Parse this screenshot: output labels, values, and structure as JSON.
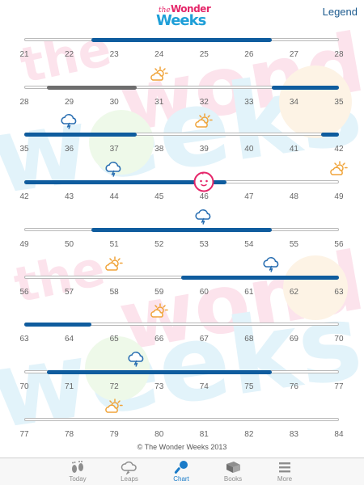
{
  "header": {
    "logo": {
      "the": "the",
      "wonder": "Wonder",
      "weeks": "Weeks"
    },
    "legend_label": "Legend"
  },
  "colors": {
    "leap_blue": "#0f5c9e",
    "fussy_gray": "#6d6d6d",
    "storm_blue": "#2a6fb2",
    "sun_orange": "#f0a43a",
    "face_pink": "#e5276a",
    "tab_active": "#1a7bc8",
    "tab_inactive": "#8e8e8e"
  },
  "chart": {
    "rows": [
      {
        "start_week": 21,
        "labels": [
          "21",
          "22",
          "23",
          "24",
          "25",
          "26",
          "27",
          "28"
        ],
        "segments": [
          {
            "from": 22.5,
            "to": 26.5,
            "kind": "leap"
          }
        ],
        "icons": []
      },
      {
        "start_week": 28,
        "labels": [
          "28",
          "29",
          "30",
          "31",
          "32",
          "33",
          "34",
          "35"
        ],
        "segments": [
          {
            "from": 28.5,
            "to": 30.5,
            "kind": "fussy"
          },
          {
            "from": 33.5,
            "to": 35,
            "kind": "leap"
          }
        ],
        "icons": [
          {
            "name": "sun-icon",
            "week": 31
          }
        ]
      },
      {
        "start_week": 35,
        "labels": [
          "35",
          "36",
          "37",
          "38",
          "39",
          "40",
          "41",
          "42"
        ],
        "segments": [
          {
            "from": 35,
            "to": 37.5,
            "kind": "leap"
          },
          {
            "from": 41.6,
            "to": 42,
            "kind": "leap"
          }
        ],
        "icons": [
          {
            "name": "storm-icon",
            "week": 36
          },
          {
            "name": "sun-icon",
            "week": 39
          }
        ]
      },
      {
        "start_week": 42,
        "labels": [
          "42",
          "43",
          "44",
          "45",
          "46",
          "47",
          "48",
          "49"
        ],
        "segments": [
          {
            "from": 42,
            "to": 46.5,
            "kind": "leap"
          }
        ],
        "icons": [
          {
            "name": "storm-icon",
            "week": 44
          },
          {
            "name": "sun-icon",
            "week": 49
          }
        ],
        "marker": {
          "name": "current-week-face-icon",
          "week": 46
        }
      },
      {
        "start_week": 49,
        "labels": [
          "49",
          "50",
          "51",
          "52",
          "53",
          "54",
          "55",
          "56"
        ],
        "segments": [
          {
            "from": 50.5,
            "to": 54.5,
            "kind": "leap"
          }
        ],
        "icons": [
          {
            "name": "storm-icon",
            "week": 53
          }
        ]
      },
      {
        "start_week": 56,
        "labels": [
          "56",
          "57",
          "58",
          "59",
          "60",
          "61",
          "62",
          "63"
        ],
        "segments": [
          {
            "from": 59.5,
            "to": 63,
            "kind": "leap"
          }
        ],
        "icons": [
          {
            "name": "sun-icon",
            "week": 58
          },
          {
            "name": "storm-icon",
            "week": 61.5
          }
        ]
      },
      {
        "start_week": 63,
        "labels": [
          "63",
          "64",
          "65",
          "66",
          "67",
          "68",
          "69",
          "70"
        ],
        "segments": [
          {
            "from": 63,
            "to": 64.5,
            "kind": "leap"
          }
        ],
        "icons": [
          {
            "name": "sun-icon",
            "week": 66
          }
        ]
      },
      {
        "start_week": 70,
        "labels": [
          "70",
          "71",
          "72",
          "73",
          "74",
          "75",
          "76",
          "77"
        ],
        "segments": [
          {
            "from": 70.5,
            "to": 75.5,
            "kind": "leap"
          }
        ],
        "icons": [
          {
            "name": "storm-icon",
            "week": 72.5
          }
        ]
      },
      {
        "start_week": 77,
        "labels": [
          "77",
          "78",
          "79",
          "80",
          "81",
          "82",
          "83",
          "84"
        ],
        "segments": [],
        "icons": [
          {
            "name": "sun-icon",
            "week": 79
          }
        ]
      }
    ]
  },
  "footer": {
    "copyright": "© The Wonder Weeks 2013"
  },
  "tabs": [
    {
      "id": "today",
      "label": "Today",
      "icon": "footprints-icon",
      "active": false
    },
    {
      "id": "leaps",
      "label": "Leaps",
      "icon": "leaps-cloud-icon",
      "active": false
    },
    {
      "id": "chart",
      "label": "Chart",
      "icon": "rattle-icon",
      "active": true
    },
    {
      "id": "books",
      "label": "Books",
      "icon": "books-icon",
      "active": false
    },
    {
      "id": "more",
      "label": "More",
      "icon": "menu-lines-icon",
      "active": false
    }
  ]
}
